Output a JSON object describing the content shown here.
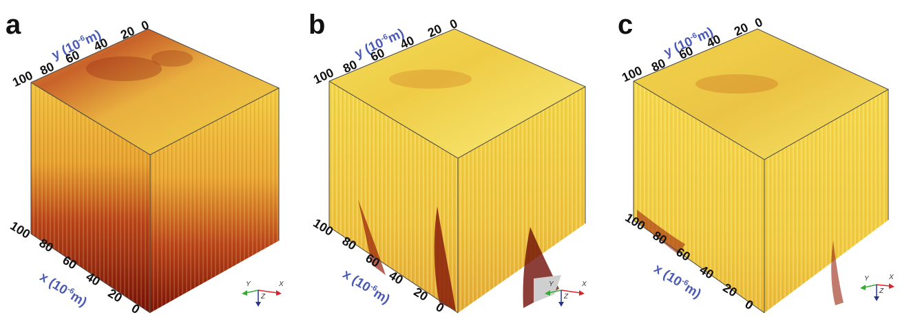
{
  "panels": [
    {
      "letter": "a",
      "y_axis_label": "y (10",
      "x_axis_label": "x (10",
      "exp": "-6",
      "unit": "m)",
      "y_ticks": [
        "100",
        "80",
        "60",
        "40",
        "20",
        "0"
      ],
      "x_ticks": [
        "100",
        "80",
        "60",
        "40",
        "20",
        "0"
      ],
      "triad": {
        "y": "Y",
        "z": "Z",
        "x": "X"
      }
    },
    {
      "letter": "b",
      "y_axis_label": "y (10",
      "x_axis_label": "x (10",
      "exp": "-6",
      "unit": "m)",
      "y_ticks": [
        "100",
        "80",
        "60",
        "40",
        "20",
        "0"
      ],
      "x_ticks": [
        "100",
        "80",
        "60",
        "40",
        "20",
        "0"
      ],
      "triad": {
        "y": "Y",
        "z": "Z",
        "x": "X"
      }
    },
    {
      "letter": "c",
      "y_axis_label": "y (10",
      "x_axis_label": "x (10",
      "exp": "-6",
      "unit": "m)",
      "y_ticks": [
        "100",
        "80",
        "60",
        "40",
        "20",
        "0"
      ],
      "x_ticks": [
        "100",
        "80",
        "60",
        "40",
        "20",
        "0"
      ],
      "triad": {
        "y": "Y",
        "z": "Z",
        "x": "X"
      }
    }
  ],
  "colors": {
    "axis_label": "#4a5bb5",
    "yellow": "#f6e13a",
    "orange": "#e29a2a",
    "dark_red": "#7a1208",
    "triad_x": "#d8232a",
    "triad_y": "#39a935",
    "triad_z": "#27348b"
  }
}
